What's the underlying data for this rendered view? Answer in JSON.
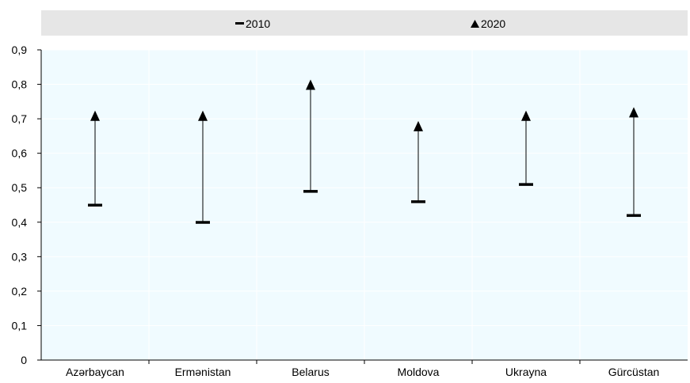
{
  "chart_data": {
    "type": "dot-range",
    "categories": [
      "Azərbaycan",
      "Ermənistan",
      "Belarus",
      "Moldova",
      "Ukrayna",
      "Gürcüstan"
    ],
    "series": [
      {
        "name": "2010",
        "marker": "dash",
        "values": [
          0.45,
          0.4,
          0.49,
          0.46,
          0.51,
          0.42
        ]
      },
      {
        "name": "2020",
        "marker": "triangle",
        "values": [
          0.71,
          0.71,
          0.8,
          0.68,
          0.71,
          0.72
        ]
      }
    ],
    "yticks": [
      "0",
      "0,1",
      "0,2",
      "0,3",
      "0,4",
      "0,5",
      "0,6",
      "0,7",
      "0,8",
      "0,9"
    ],
    "ylim": [
      0,
      0.9
    ],
    "grid": true,
    "legend_position": "top",
    "colors": {
      "plot_background": "#f0fbff",
      "legend_background": "#e6e6e6",
      "gridline": "#ffffff",
      "marker": "#000000"
    }
  }
}
